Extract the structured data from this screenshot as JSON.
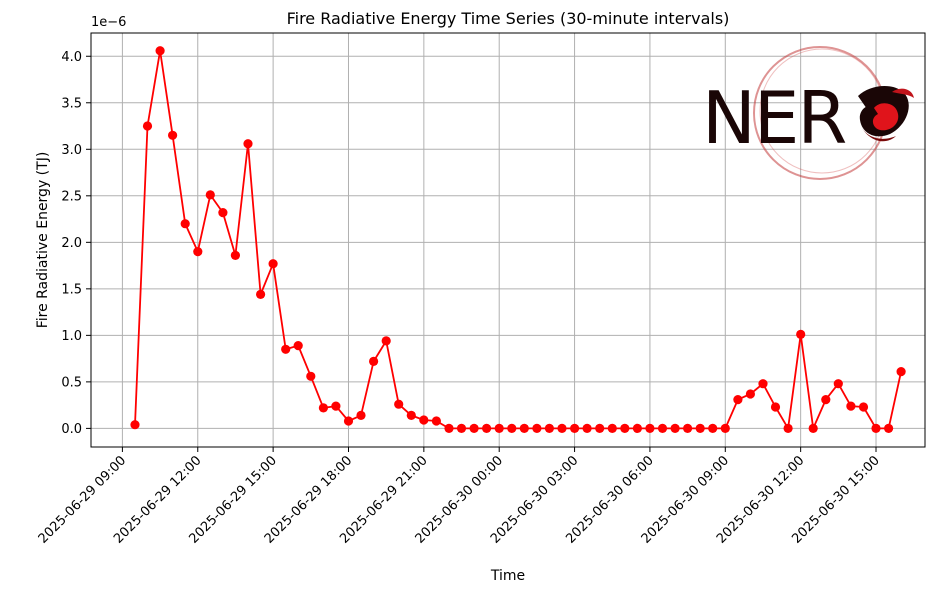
{
  "chart_data": {
    "type": "line",
    "title": "Fire Radiative Energy Time Series (30-minute intervals)",
    "xlabel": "Time",
    "ylabel": "Fire Radiative Energy (TJ)",
    "y_offset_label": "1e−6",
    "y_scale": 1e-06,
    "ylim": [
      -0.2,
      4.25
    ],
    "y_ticks": [
      0.0,
      0.5,
      1.0,
      1.5,
      2.0,
      2.5,
      3.0,
      3.5,
      4.0
    ],
    "y_tick_labels": [
      "0.0",
      "0.5",
      "1.0",
      "1.5",
      "2.0",
      "2.5",
      "3.0",
      "3.5",
      "4.0"
    ],
    "x_ticks": [
      {
        "hours": 0,
        "label": "2025-06-29 09:00"
      },
      {
        "hours": 3,
        "label": "2025-06-29 12:00"
      },
      {
        "hours": 6,
        "label": "2025-06-29 15:00"
      },
      {
        "hours": 9,
        "label": "2025-06-29 18:00"
      },
      {
        "hours": 12,
        "label": "2025-06-29 21:00"
      },
      {
        "hours": 15,
        "label": "2025-06-30 00:00"
      },
      {
        "hours": 18,
        "label": "2025-06-30 03:00"
      },
      {
        "hours": 21,
        "label": "2025-06-30 06:00"
      },
      {
        "hours": 24,
        "label": "2025-06-30 09:00"
      },
      {
        "hours": 27,
        "label": "2025-06-30 12:00"
      },
      {
        "hours": 30,
        "label": "2025-06-30 15:00"
      }
    ],
    "xlim_hours": [
      -1.25,
      31.95
    ],
    "grid": true,
    "series": [
      {
        "color": "#ff0000",
        "x_start_hours": 0.5,
        "x_step_hours": 0.5,
        "values": [
          0.04,
          3.25,
          4.06,
          3.15,
          2.2,
          1.9,
          2.51,
          2.32,
          1.86,
          3.06,
          1.44,
          1.77,
          0.85,
          0.89,
          0.56,
          0.22,
          0.24,
          0.08,
          0.14,
          0.72,
          0.94,
          0.26,
          0.14,
          0.09,
          0.08,
          0.0,
          0.0,
          0.0,
          0.0,
          0.0,
          0.0,
          0.0,
          0.0,
          0.0,
          0.0,
          0.0,
          0.0,
          0.0,
          0.0,
          0.0,
          0.0,
          0.0,
          0.0,
          0.0,
          0.0,
          0.0,
          0.0,
          0.0,
          0.31,
          0.37,
          0.48,
          0.23,
          0.0,
          1.01,
          0.0,
          0.31,
          0.48,
          0.24,
          0.23,
          0.0,
          0.0,
          0.61
        ]
      }
    ]
  },
  "logo": {
    "text": "NER"
  }
}
